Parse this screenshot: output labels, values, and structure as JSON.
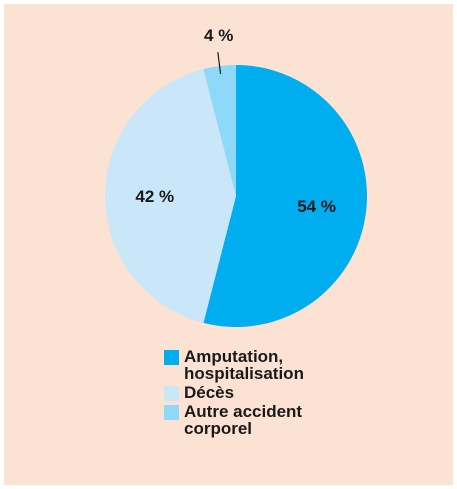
{
  "chart_data": {
    "type": "pie",
    "slices": [
      {
        "label": "Amputation,\nhospitalisation",
        "value": 54,
        "value_label": "54 %",
        "color": "#00aeef"
      },
      {
        "label": "Décès",
        "value": 42,
        "value_label": "42 %",
        "color": "#c9e7f8"
      },
      {
        "label": "Autre accident\ncorporel",
        "value": 4,
        "value_label": "4 %",
        "color": "#8ed8f8"
      }
    ],
    "legend_position": "bottom",
    "background_color": "#fce2d2"
  }
}
